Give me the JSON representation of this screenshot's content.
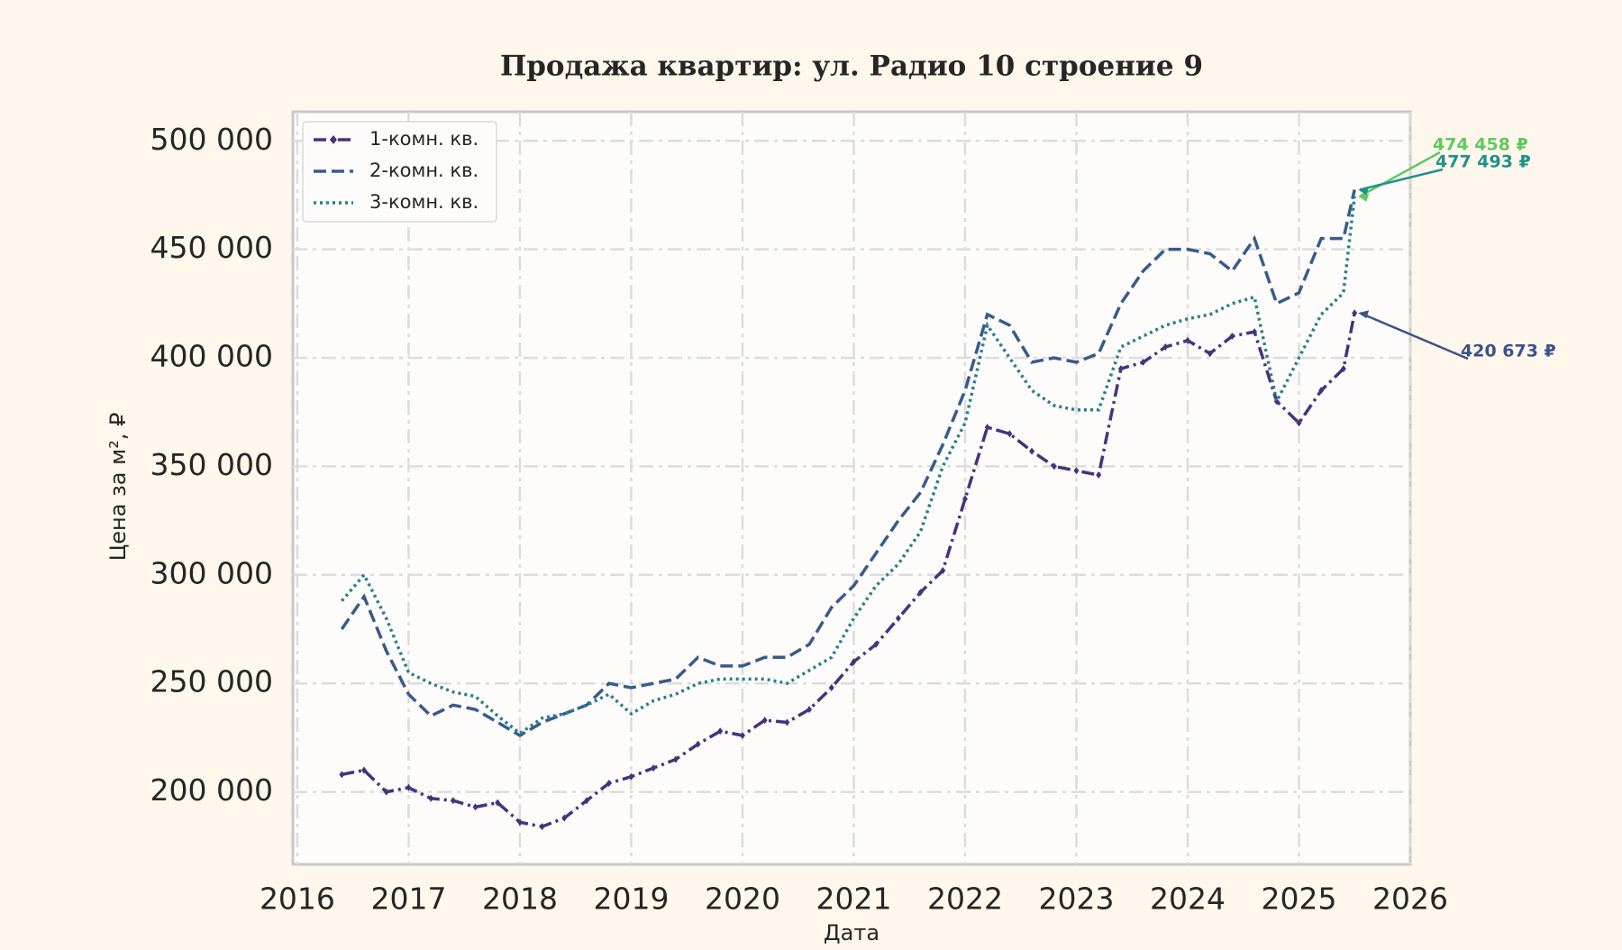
{
  "chart_data": {
    "type": "line",
    "title": "Продажа квартир: ул. Радио 10 строение 9",
    "x_label": "Дата",
    "y_label": "Цена за м², ₽",
    "xlim": [
      2015.96,
      2026
    ],
    "xticks": [
      2016,
      2017,
      2018,
      2019,
      2020,
      2021,
      2022,
      2023,
      2024,
      2025,
      2026
    ],
    "ylim": [
      166600,
      513400
    ],
    "yticks": [
      {
        "value": 200000,
        "label": "200 000"
      },
      {
        "value": 250000,
        "label": "250 000"
      },
      {
        "value": 300000,
        "label": "300 000"
      },
      {
        "value": 350000,
        "label": "350 000"
      },
      {
        "value": 400000,
        "label": "400 000"
      },
      {
        "value": 450000,
        "label": "450 000"
      },
      {
        "value": 500000,
        "label": "500 000"
      }
    ],
    "grid": true,
    "legend": "upper left",
    "x": [
      2016.4,
      2016.6,
      2016.8,
      2017.0,
      2017.2,
      2017.4,
      2017.6,
      2017.8,
      2018.0,
      2018.2,
      2018.4,
      2018.6,
      2018.8,
      2019.0,
      2019.2,
      2019.4,
      2019.6,
      2019.8,
      2020.0,
      2020.2,
      2020.4,
      2020.6,
      2020.8,
      2021.0,
      2021.2,
      2021.4,
      2021.6,
      2021.8,
      2022.0,
      2022.2,
      2022.4,
      2022.6,
      2022.8,
      2023.0,
      2023.2,
      2023.4,
      2023.6,
      2023.8,
      2024.0,
      2024.2,
      2024.4,
      2024.6,
      2024.8,
      2025.0,
      2025.2,
      2025.4,
      2025.5
    ],
    "series": [
      {
        "name": "1-комн. кв.",
        "color": "#46337e",
        "linestyle": "dashdot",
        "marker": "diamond",
        "values": [
          208000,
          210000,
          200000,
          202000,
          197000,
          196000,
          193000,
          195000,
          186000,
          184000,
          188000,
          196000,
          204000,
          207000,
          211000,
          215000,
          222000,
          228000,
          226000,
          233000,
          232000,
          238000,
          248000,
          260000,
          268000,
          280000,
          292000,
          302000,
          335000,
          368000,
          365000,
          357000,
          350000,
          348000,
          346000,
          395000,
          398000,
          405000,
          408000,
          402000,
          410000,
          412000,
          380000,
          370000,
          385000,
          395000,
          420673
        ]
      },
      {
        "name": "2-комн. кв.",
        "color": "#365c8d",
        "linestyle": "dashed",
        "values": [
          275000,
          290000,
          265000,
          245000,
          235000,
          240000,
          238000,
          232000,
          226000,
          232000,
          236000,
          240000,
          250000,
          248000,
          250000,
          252000,
          262000,
          258000,
          258000,
          262000,
          262000,
          268000,
          285000,
          295000,
          310000,
          325000,
          338000,
          360000,
          385000,
          420000,
          415000,
          398000,
          400000,
          398000,
          402000,
          425000,
          440000,
          450000,
          450000,
          448000,
          440000,
          455000,
          425000,
          430000,
          455000,
          455000,
          477493
        ]
      },
      {
        "name": "3-комн. кв.",
        "color": "#277f8e",
        "linestyle": "dotted",
        "values": [
          288000,
          300000,
          280000,
          255000,
          250000,
          246000,
          244000,
          235000,
          227000,
          234000,
          236000,
          240000,
          245000,
          236000,
          242000,
          245000,
          250000,
          252000,
          252000,
          252000,
          250000,
          256000,
          262000,
          280000,
          295000,
          305000,
          320000,
          350000,
          370000,
          415000,
          400000,
          385000,
          378000,
          376000,
          376000,
          405000,
          410000,
          415000,
          418000,
          420000,
          425000,
          428000,
          380000,
          400000,
          420000,
          430000,
          474458
        ]
      }
    ],
    "annotations": [
      {
        "label": "474 458 ₽",
        "x": 2025.5,
        "y": 474458,
        "color": "#5ec962"
      },
      {
        "label": "477 493 ₽",
        "x": 2025.5,
        "y": 477493,
        "color": "#21918c"
      },
      {
        "label": "420 673 ₽",
        "x": 2025.5,
        "y": 420673,
        "color": "#3b528b"
      }
    ]
  }
}
